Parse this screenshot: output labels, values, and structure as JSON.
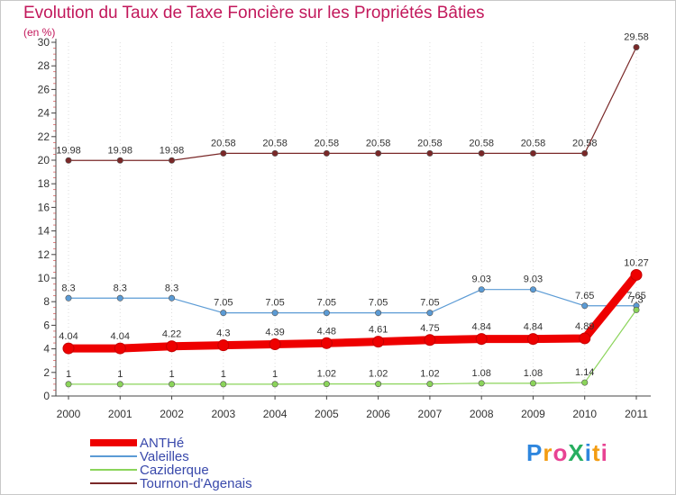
{
  "chart_data": {
    "type": "line",
    "title": "Evolution du Taux de Taxe Foncière sur les Propriétés Bâties",
    "ylabel": "(en %)",
    "xlabel": "",
    "categories": [
      "2000",
      "2001",
      "2002",
      "2003",
      "2004",
      "2005",
      "2006",
      "2007",
      "2008",
      "2009",
      "2010",
      "2011"
    ],
    "ylim": [
      0,
      30
    ],
    "yticks": [
      0,
      2,
      4,
      6,
      8,
      10,
      12,
      14,
      16,
      18,
      20,
      22,
      24,
      26,
      28,
      30
    ],
    "series": [
      {
        "name": "ANTHé",
        "color": "#ee0000",
        "values": [
          4.04,
          4.04,
          4.22,
          4.3,
          4.39,
          4.48,
          4.61,
          4.75,
          4.84,
          4.84,
          4.89,
          10.27
        ],
        "labels": [
          "4.04",
          "4.04",
          "4.22",
          "4.3",
          "4.39",
          "4.48",
          "4.61",
          "4.75",
          "4.84",
          "4.84",
          "4.89",
          "10.27"
        ]
      },
      {
        "name": "Valeilles",
        "color": "#5b9bd5",
        "values": [
          8.3,
          8.3,
          8.3,
          7.05,
          7.05,
          7.05,
          7.05,
          7.05,
          9.03,
          9.03,
          7.65,
          7.65
        ],
        "labels": [
          "8.3",
          "8.3",
          "8.3",
          "7.05",
          "7.05",
          "7.05",
          "7.05",
          "7.05",
          "9.03",
          "9.03",
          "7.65",
          "7.65"
        ]
      },
      {
        "name": "Caziderque",
        "color": "#8bd45a",
        "values": [
          1,
          1,
          1,
          1,
          1,
          1.02,
          1.02,
          1.02,
          1.08,
          1.08,
          1.14,
          7.3
        ],
        "labels": [
          "1",
          "1",
          "1",
          "1",
          "1",
          "1.02",
          "1.02",
          "1.02",
          "1.08",
          "1.08",
          "1.14",
          "7.3"
        ]
      },
      {
        "name": "Tournon-d'Agenais",
        "color": "#7a2828",
        "values": [
          19.98,
          19.98,
          19.98,
          20.58,
          20.58,
          20.58,
          20.58,
          20.58,
          20.58,
          20.58,
          20.58,
          29.58
        ],
        "labels": [
          "19.98",
          "19.98",
          "19.98",
          "20.58",
          "20.58",
          "20.58",
          "20.58",
          "20.58",
          "20.58",
          "20.58",
          "20.58",
          "29.58"
        ]
      }
    ],
    "legend": "bottom-left",
    "grid": "dotted-vertical"
  },
  "brand": {
    "text": "ProXiti",
    "letters": [
      "P",
      "r",
      "o",
      "X",
      "i",
      "t",
      "i"
    ],
    "colors": [
      "#2e86de",
      "#f39c12",
      "#e84393",
      "#27ae60",
      "#2e86de",
      "#f39c12",
      "#e84393"
    ]
  }
}
